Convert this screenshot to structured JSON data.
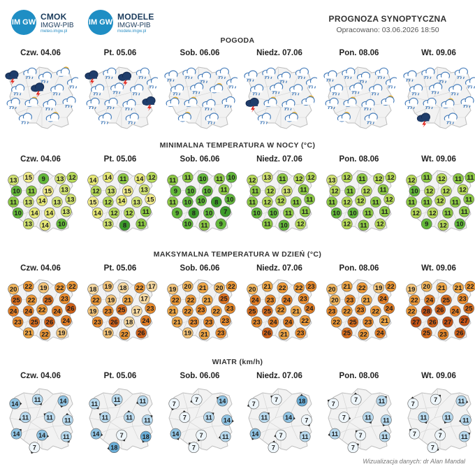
{
  "cmok_logo": {
    "badge": "IM GW",
    "title": "CMOK",
    "sub": "IMGW-PIB",
    "url": "meteo.imgw.pl"
  },
  "modele_logo": {
    "badge": "IM GW",
    "title": "MODELE",
    "sub": "IMGW-PIB",
    "url": "modele.imgw.pl"
  },
  "header": {
    "title": "PROGNOZA SYNOPTYCZNA",
    "issued": "Opracowano: 03.06.2026 18:50"
  },
  "days": [
    "Czw. 04.06",
    "Pt. 05.06",
    "Sob. 06.06",
    "Niedz. 07.06",
    "Pon. 08.06",
    "Wt. 09.06"
  ],
  "sections": {
    "pogoda": "POGODA",
    "tmin": "MINIMALNA TEMPERATURA W NOCY (°C)",
    "tmax": "MAKSYMALNA TEMPERATURA W DZIEŃ (°C)",
    "wiatr": "WIATR (km/h)"
  },
  "weather_icons": [
    [
      "storm-cloud",
      "rain-cloud",
      "rain-cloud",
      "partly-cloudy",
      "rain-cloud",
      "rain-cloud",
      "storm-cloud",
      "rain-cloud",
      "rain-cloud",
      "partly-cloudy",
      "rain-cloud",
      "rain-cloud",
      "rain-cloud",
      "partly-cloudy"
    ],
    [
      "storm-cloud",
      "rain-cloud",
      "storm-cloud",
      "rain-cloud",
      "rain-cloud",
      "rain-cloud",
      "rain-cloud",
      "rain-cloud",
      "rain-cloud",
      "rain-cloud",
      "rain-cloud",
      "storm-cloud",
      "rain-cloud",
      "rain-cloud"
    ],
    [
      "rain-cloud",
      "rain-cloud",
      "rain-cloud",
      "rain-cloud",
      "rain-cloud",
      "rain-cloud",
      "rain-cloud",
      "partly-cloudy",
      "partly-cloudy",
      "partly-cloudy",
      "rain-cloud",
      "rain-cloud",
      "partly-cloudy",
      "rain-cloud"
    ],
    [
      "rain-cloud",
      "rain-cloud",
      "rain-cloud",
      "rain-cloud",
      "rain-cloud",
      "rain-cloud",
      "rain-cloud",
      "rain-cloud",
      "storm-cloud",
      "partly-cloudy",
      "rain-cloud",
      "partly-cloudy",
      "rain-cloud",
      "partly-cloudy"
    ],
    [
      "rain-cloud",
      "rain-cloud",
      "rain-cloud",
      "rain-cloud",
      "rain-cloud",
      "rain-cloud",
      "rain-cloud",
      "rain-cloud",
      "rain-cloud",
      "partly-cloudy",
      "rain-cloud",
      "partly-cloudy",
      "partly-cloudy",
      "rain-cloud"
    ],
    [
      "rain-cloud",
      "rain-cloud",
      "rain-cloud",
      "rain-cloud",
      "rain-cloud",
      "rain-cloud",
      "rain-cloud",
      "rain-cloud",
      "rain-cloud",
      "rain-cloud",
      "partly-cloudy",
      "rain-cloud",
      "storm-cloud",
      "rain-cloud"
    ]
  ],
  "tmin": [
    [
      13,
      15,
      9,
      13,
      12,
      10,
      11,
      15,
      13,
      11,
      13,
      14,
      13,
      13,
      10,
      14,
      14,
      13,
      13,
      14,
      10
    ],
    [
      14,
      14,
      11,
      14,
      12,
      12,
      13,
      15,
      13,
      15,
      12,
      14,
      13,
      15,
      14,
      12,
      12,
      11,
      13,
      8,
      11
    ],
    [
      11,
      11,
      10,
      11,
      10,
      9,
      10,
      10,
      11,
      11,
      10,
      10,
      8,
      10,
      9,
      8,
      10,
      7,
      10,
      11,
      9
    ],
    [
      12,
      13,
      11,
      12,
      12,
      11,
      12,
      13,
      11,
      11,
      12,
      12,
      11,
      11,
      10,
      10,
      11,
      11,
      11,
      10,
      12
    ],
    [
      13,
      12,
      11,
      12,
      12,
      12,
      11,
      12,
      11,
      11,
      12,
      12,
      11,
      12,
      10,
      10,
      11,
      11,
      12,
      11,
      12
    ],
    [
      12,
      11,
      12,
      11,
      11,
      10,
      12,
      12,
      12,
      11,
      11,
      12,
      11,
      11,
      12,
      12,
      11,
      11,
      9,
      12,
      10
    ]
  ],
  "tmax": [
    [
      20,
      22,
      19,
      22,
      22,
      25,
      22,
      25,
      23,
      24,
      24,
      22,
      24,
      26,
      23,
      25,
      26,
      24,
      21,
      22,
      19
    ],
    [
      18,
      19,
      18,
      22,
      17,
      22,
      19,
      21,
      17,
      19,
      23,
      25,
      17,
      23,
      23,
      26,
      18,
      24,
      19,
      22,
      26
    ],
    [
      19,
      20,
      21,
      20,
      22,
      22,
      22,
      21,
      25,
      21,
      22,
      23,
      22,
      23,
      21,
      23,
      23,
      23,
      19,
      21,
      23
    ],
    [
      20,
      21,
      22,
      22,
      23,
      24,
      23,
      24,
      23,
      25,
      25,
      22,
      21,
      24,
      23,
      24,
      24,
      22,
      26,
      21,
      23
    ],
    [
      20,
      21,
      22,
      19,
      22,
      20,
      23,
      21,
      24,
      23,
      22,
      23,
      22,
      24,
      22,
      25,
      23,
      21,
      25,
      22,
      24
    ],
    [
      19,
      20,
      21,
      21,
      22,
      22,
      24,
      25,
      23,
      22,
      28,
      26,
      24,
      25,
      27,
      26,
      27,
      27,
      25,
      23,
      26
    ]
  ],
  "wind": [
    [
      14,
      11,
      14,
      11,
      11,
      11,
      14,
      14,
      11,
      7
    ],
    [
      11,
      11,
      11,
      11,
      11,
      11,
      14,
      7,
      18,
      18
    ],
    [
      7,
      7,
      14,
      7,
      11,
      14,
      14,
      7,
      11,
      7
    ],
    [
      7,
      7,
      18,
      11,
      14,
      7,
      14,
      7,
      11,
      7
    ],
    [
      7,
      7,
      11,
      7,
      11,
      11,
      11,
      7,
      11,
      7
    ],
    [
      7,
      7,
      11,
      11,
      11,
      11,
      7,
      7,
      11,
      7
    ]
  ],
  "credit": "Wizualizacja danych: dr Alan Mandal"
}
